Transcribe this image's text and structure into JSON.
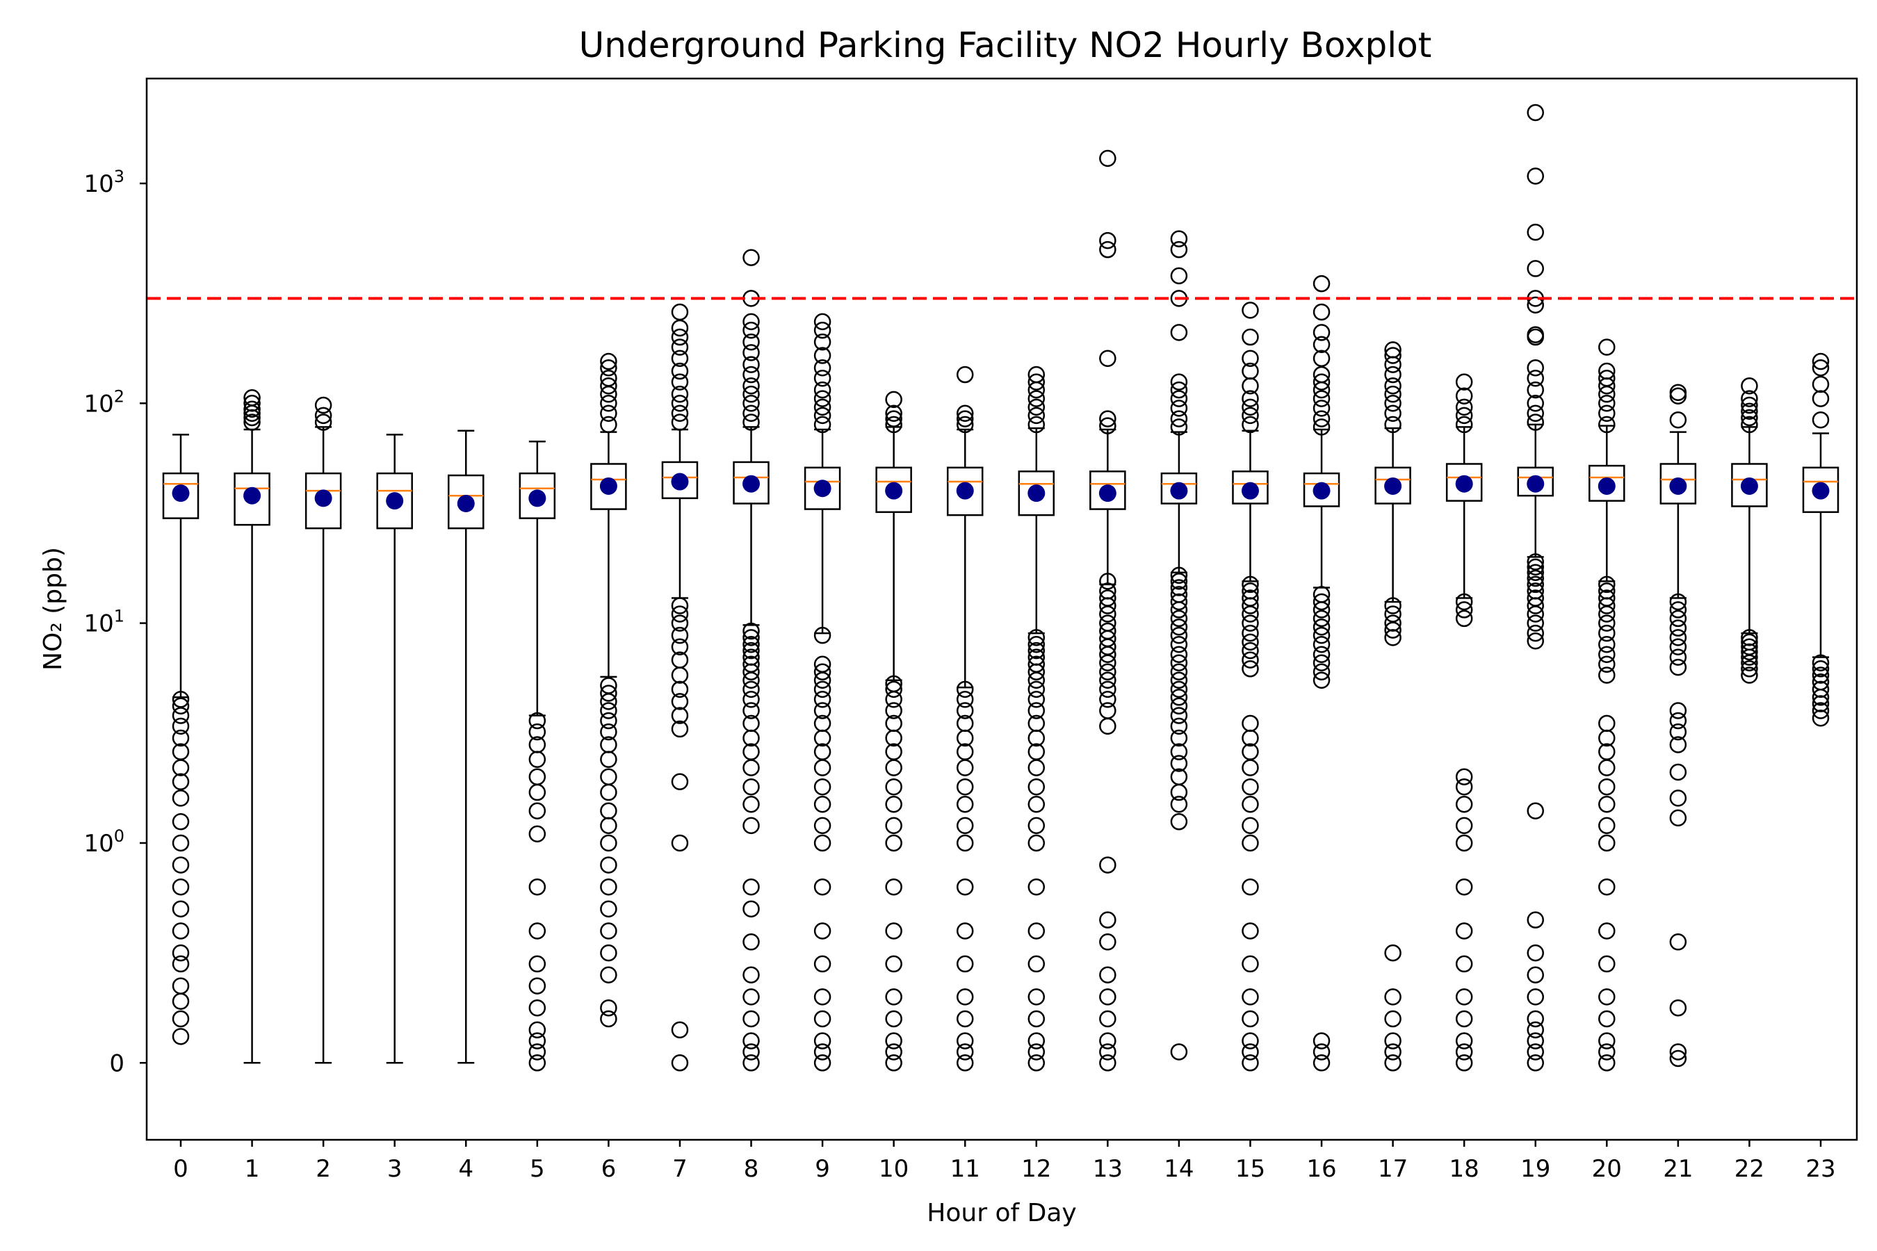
{
  "chart_data": {
    "type": "boxplot",
    "title": "Underground Parking Facility NO2 Hourly Boxplot",
    "xlabel": "Hour of Day",
    "ylabel": "NO₂ (ppb)",
    "y_scale": "symlog",
    "ylim": [
      -0.35,
      3000
    ],
    "y_ticks": [
      {
        "value": 0,
        "label": "0"
      },
      {
        "value": 1,
        "label": "10",
        "exp": "0"
      },
      {
        "value": 10,
        "label": "10",
        "exp": "1"
      },
      {
        "value": 100,
        "label": "10",
        "exp": "2"
      },
      {
        "value": 1000,
        "label": "10",
        "exp": "3"
      }
    ],
    "categories": [
      "0",
      "1",
      "2",
      "3",
      "4",
      "5",
      "6",
      "7",
      "8",
      "9",
      "10",
      "11",
      "12",
      "13",
      "14",
      "15",
      "16",
      "17",
      "18",
      "19",
      "20",
      "21",
      "22",
      "23"
    ],
    "reference_line": {
      "value": 300,
      "color": "#ff0000",
      "style": "dashed"
    },
    "colors": {
      "box": "#000000",
      "median": "#ff7f0e",
      "mean": "#00008b",
      "outlier": "#000000"
    },
    "boxes": [
      {
        "hour": "0",
        "whisker_low": 4.6,
        "q1": 30,
        "median": 43,
        "q3": 48,
        "whisker_high": 72,
        "mean": 39,
        "outliers": [
          0.12,
          0.2,
          0.28,
          0.35,
          0.45,
          0.5,
          0.6,
          0.7,
          0.8,
          0.9,
          1.0,
          1.25,
          1.6,
          1.9,
          2.2,
          2.6,
          3.0,
          3.4,
          3.8,
          4.2,
          4.5
        ]
      },
      {
        "hour": "1",
        "whisker_low": 0,
        "q1": 28,
        "median": 41,
        "q3": 48,
        "whisker_high": 76,
        "mean": 38,
        "outliers": [
          82,
          86,
          90,
          94,
          100,
          106
        ]
      },
      {
        "hour": "2",
        "whisker_low": 0,
        "q1": 27,
        "median": 40,
        "q3": 48,
        "whisker_high": 78,
        "mean": 37,
        "outliers": [
          82,
          88,
          98
        ]
      },
      {
        "hour": "3",
        "whisker_low": 0,
        "q1": 27,
        "median": 40,
        "q3": 48,
        "whisker_high": 72,
        "mean": 36,
        "outliers": []
      },
      {
        "hour": "4",
        "whisker_low": 0,
        "q1": 27,
        "median": 38,
        "q3": 47,
        "whisker_high": 75,
        "mean": 35,
        "outliers": []
      },
      {
        "hour": "5",
        "whisker_low": 3.8,
        "q1": 30,
        "median": 41,
        "q3": 48,
        "whisker_high": 67,
        "mean": 37,
        "outliers": [
          0.0,
          0.05,
          0.1,
          0.15,
          0.25,
          0.35,
          0.45,
          0.6,
          0.8,
          1.1,
          1.4,
          1.7,
          2.0,
          2.4,
          2.8,
          3.2,
          3.6
        ]
      },
      {
        "hour": "6",
        "whisker_low": 5.7,
        "q1": 33,
        "median": 45,
        "q3": 53,
        "whisker_high": 74,
        "mean": 42,
        "outliers": [
          0.2,
          0.25,
          0.4,
          0.5,
          0.6,
          0.7,
          0.8,
          0.9,
          1.0,
          1.2,
          1.4,
          1.7,
          2.0,
          2.4,
          2.8,
          3.2,
          3.6,
          4.0,
          4.4,
          4.8,
          5.2,
          80,
          90,
          100,
          110,
          120,
          130,
          145,
          155
        ]
      },
      {
        "hour": "7",
        "whisker_low": 13,
        "q1": 37,
        "median": 46,
        "q3": 54,
        "whisker_high": 76,
        "mean": 44,
        "outliers": [
          0.0,
          0.15,
          1.0,
          1.9,
          3.3,
          3.8,
          4.4,
          5.0,
          5.8,
          6.8,
          7.8,
          8.8,
          10,
          11,
          12,
          82,
          90,
          100,
          110,
          125,
          140,
          160,
          180,
          200,
          220,
          260
        ]
      },
      {
        "hour": "8",
        "whisker_low": 9.8,
        "q1": 35,
        "median": 46,
        "q3": 54,
        "whisker_high": 78,
        "mean": 43,
        "outliers": [
          0.0,
          0.05,
          0.1,
          0.2,
          0.3,
          0.4,
          0.55,
          0.7,
          0.8,
          1.2,
          1.5,
          1.8,
          2.2,
          2.6,
          3.0,
          3.5,
          4.0,
          4.5,
          5.0,
          5.5,
          6.0,
          6.5,
          7.0,
          7.5,
          8.0,
          8.6,
          9.2,
          82,
          90,
          100,
          110,
          120,
          135,
          150,
          170,
          190,
          215,
          235,
          300,
          460
        ]
      },
      {
        "hour": "9",
        "whisker_low": 9.0,
        "q1": 33,
        "median": 44,
        "q3": 51,
        "whisker_high": 76,
        "mean": 41,
        "outliers": [
          0.0,
          0.05,
          0.1,
          0.2,
          0.3,
          0.45,
          0.6,
          0.8,
          1.0,
          1.2,
          1.5,
          1.8,
          2.2,
          2.6,
          3.0,
          3.5,
          4.0,
          4.5,
          5.0,
          5.5,
          6.0,
          6.5,
          8.8,
          80,
          88,
          96,
          105,
          115,
          130,
          145,
          165,
          190,
          215,
          235
        ]
      },
      {
        "hour": "10",
        "whisker_low": 5.5,
        "q1": 32,
        "median": 44,
        "q3": 51,
        "whisker_high": 78,
        "mean": 40,
        "outliers": [
          0.0,
          0.05,
          0.1,
          0.2,
          0.3,
          0.45,
          0.6,
          0.8,
          1.0,
          1.2,
          1.5,
          1.8,
          2.2,
          2.6,
          3.0,
          3.5,
          4.0,
          4.5,
          5.0,
          5.3,
          80,
          85,
          90,
          104
        ]
      },
      {
        "hour": "11",
        "whisker_low": 5.1,
        "q1": 31,
        "median": 44,
        "q3": 51,
        "whisker_high": 76,
        "mean": 40,
        "outliers": [
          0.0,
          0.05,
          0.1,
          0.2,
          0.3,
          0.45,
          0.6,
          0.8,
          1.0,
          1.2,
          1.5,
          1.8,
          2.2,
          2.6,
          3.0,
          3.5,
          4.0,
          4.5,
          5.0,
          80,
          85,
          90,
          135
        ]
      },
      {
        "hour": "12",
        "whisker_low": 9.0,
        "q1": 31,
        "median": 43,
        "q3": 49,
        "whisker_high": 77,
        "mean": 39,
        "outliers": [
          0.0,
          0.05,
          0.1,
          0.2,
          0.3,
          0.45,
          0.6,
          0.8,
          1.0,
          1.2,
          1.5,
          1.8,
          2.2,
          2.6,
          3.0,
          3.5,
          4.0,
          4.5,
          5.0,
          5.5,
          6.0,
          6.5,
          7.0,
          7.5,
          8.0,
          8.6,
          80,
          88,
          96,
          105,
          115,
          125,
          135
        ]
      },
      {
        "hour": "13",
        "whisker_low": 15,
        "q1": 33,
        "median": 43,
        "q3": 49,
        "whisker_high": 76,
        "mean": 39,
        "outliers": [
          0.0,
          0.05,
          0.1,
          0.2,
          0.3,
          0.4,
          0.55,
          0.65,
          0.9,
          3.4,
          4.0,
          4.5,
          5.0,
          5.5,
          6.0,
          6.6,
          7.2,
          7.8,
          8.5,
          9.2,
          10,
          11,
          12,
          13,
          14,
          15.5,
          79,
          85,
          160,
          500,
          550,
          1300
        ]
      },
      {
        "hour": "14",
        "whisker_low": 17,
        "q1": 35,
        "median": 43,
        "q3": 48,
        "whisker_high": 74,
        "mean": 40,
        "outliers": [
          0.05,
          1.25,
          1.5,
          1.7,
          2.0,
          2.3,
          2.6,
          3.0,
          3.4,
          3.8,
          4.2,
          4.6,
          5.0,
          5.5,
          6.0,
          6.6,
          7.2,
          8.0,
          8.8,
          9.6,
          10.5,
          11.5,
          12.5,
          13.5,
          14.5,
          15.5,
          16.5,
          78,
          85,
          95,
          105,
          115,
          125,
          210,
          300,
          380,
          500,
          560
        ]
      },
      {
        "hour": "15",
        "whisker_low": 15.5,
        "q1": 35,
        "median": 43,
        "q3": 49,
        "whisker_high": 75,
        "mean": 40,
        "outliers": [
          0.0,
          0.05,
          0.1,
          0.2,
          0.3,
          0.45,
          0.6,
          0.8,
          1.0,
          1.2,
          1.5,
          1.8,
          2.2,
          2.6,
          3.0,
          3.5,
          6.2,
          6.8,
          7.5,
          8.2,
          9.0,
          10,
          11,
          12,
          13,
          14,
          15,
          80,
          88,
          96,
          105,
          120,
          140,
          160,
          200,
          265
        ]
      },
      {
        "hour": "16",
        "whisker_low": 14.5,
        "q1": 34,
        "median": 43,
        "q3": 48,
        "whisker_high": 76,
        "mean": 40,
        "outliers": [
          0.0,
          0.05,
          0.1,
          5.5,
          6.0,
          6.6,
          7.2,
          8.0,
          8.8,
          9.6,
          10.5,
          11.5,
          12.5,
          13.5,
          78,
          85,
          95,
          105,
          115,
          125,
          135,
          160,
          185,
          210,
          260,
          350
        ]
      },
      {
        "hour": "17",
        "whisker_low": 12.5,
        "q1": 35,
        "median": 45,
        "q3": 51,
        "whisker_high": 77,
        "mean": 42,
        "outliers": [
          0.0,
          0.05,
          0.1,
          0.2,
          0.3,
          0.5,
          8.6,
          9.3,
          10,
          11,
          12,
          80,
          90,
          100,
          110,
          120,
          135,
          150,
          165,
          175
        ]
      },
      {
        "hour": "18",
        "whisker_low": 13,
        "q1": 36,
        "median": 46,
        "q3": 53,
        "whisker_high": 78,
        "mean": 43,
        "outliers": [
          0.0,
          0.05,
          0.1,
          0.2,
          0.3,
          0.45,
          0.6,
          0.8,
          1.0,
          1.2,
          1.5,
          1.8,
          2.0,
          10.5,
          11.5,
          12.5,
          80,
          88,
          96,
          108,
          125
        ]
      },
      {
        "hour": "19",
        "whisker_low": 20,
        "q1": 38,
        "median": 46,
        "q3": 51,
        "whisker_high": 80,
        "mean": 43,
        "outliers": [
          0.0,
          0.05,
          0.1,
          0.15,
          0.2,
          0.3,
          0.4,
          0.5,
          0.65,
          1.4,
          8.3,
          9.0,
          10,
          11,
          12,
          13,
          14,
          15,
          16,
          17,
          18,
          19,
          82,
          90,
          100,
          115,
          130,
          145,
          200,
          205,
          280,
          300,
          410,
          600,
          1080,
          2100
        ]
      },
      {
        "hour": "20",
        "whisker_low": 15.5,
        "q1": 36,
        "median": 46,
        "q3": 52,
        "whisker_high": 79,
        "mean": 42,
        "outliers": [
          0.0,
          0.05,
          0.1,
          0.2,
          0.3,
          0.45,
          0.6,
          0.8,
          1.0,
          1.2,
          1.5,
          1.8,
          2.2,
          2.6,
          3.0,
          3.5,
          5.8,
          6.5,
          7.2,
          8.0,
          9.0,
          10,
          11,
          12,
          13,
          14,
          15,
          80,
          90,
          100,
          110,
          120,
          130,
          140,
          180
        ]
      },
      {
        "hour": "21",
        "whisker_low": 13,
        "q1": 35,
        "median": 45,
        "q3": 53,
        "whisker_high": 74,
        "mean": 42,
        "outliers": [
          0.02,
          0.05,
          0.25,
          0.55,
          1.3,
          1.6,
          2.1,
          2.8,
          3.2,
          3.6,
          4.0,
          6.3,
          7.0,
          7.8,
          8.6,
          9.5,
          10.5,
          11.5,
          12.5,
          84,
          108,
          112
        ]
      },
      {
        "hour": "22",
        "whisker_low": 9,
        "q1": 34,
        "median": 45,
        "q3": 53,
        "whisker_high": 78,
        "mean": 42,
        "outliers": [
          5.8,
          6.2,
          6.6,
          7.0,
          7.4,
          7.8,
          8.2,
          8.6,
          80,
          86,
          92,
          98,
          105,
          120
        ]
      },
      {
        "hour": "23",
        "whisker_low": 7,
        "q1": 32,
        "median": 44,
        "q3": 51,
        "whisker_high": 73,
        "mean": 40,
        "outliers": [
          3.7,
          4.0,
          4.3,
          4.6,
          5.0,
          5.4,
          5.8,
          6.2,
          6.6,
          84,
          105,
          122,
          145,
          155
        ]
      }
    ]
  }
}
